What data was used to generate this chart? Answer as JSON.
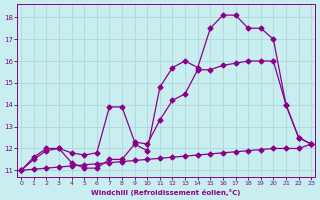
{
  "xlabel": "Windchill (Refroidissement éolien,°C)",
  "bg_color": "#c8eef0",
  "grid_color": "#aad4d8",
  "line_color": "#8b008b",
  "xlim": [
    -0.3,
    23.3
  ],
  "ylim": [
    10.7,
    18.6
  ],
  "xticks": [
    0,
    1,
    2,
    3,
    4,
    5,
    6,
    7,
    8,
    9,
    10,
    11,
    12,
    13,
    14,
    15,
    16,
    17,
    18,
    19,
    20,
    21,
    22,
    23
  ],
  "yticks": [
    11,
    12,
    13,
    14,
    15,
    16,
    17,
    18
  ],
  "line1_x": [
    0,
    1,
    2,
    3,
    4,
    5,
    6,
    7,
    8,
    9,
    10,
    11,
    12,
    13,
    14,
    15,
    16,
    17,
    18,
    19,
    20,
    21,
    22,
    23
  ],
  "line1_y": [
    11.0,
    11.6,
    12.0,
    12.0,
    11.35,
    11.1,
    11.1,
    11.5,
    11.5,
    12.2,
    11.9,
    14.8,
    15.7,
    16.0,
    15.7,
    17.5,
    18.1,
    18.1,
    17.5,
    17.5,
    17.0,
    14.0,
    12.5,
    12.2
  ],
  "line2_x": [
    0,
    1,
    2,
    3,
    4,
    5,
    6,
    7,
    8,
    9,
    10,
    11,
    12,
    13,
    14,
    15,
    16,
    17,
    18,
    19,
    20,
    21,
    22,
    23
  ],
  "line2_y": [
    11.0,
    11.5,
    11.9,
    12.0,
    11.8,
    11.7,
    11.8,
    13.9,
    13.9,
    12.3,
    12.2,
    13.3,
    14.2,
    14.5,
    15.6,
    15.6,
    15.8,
    15.9,
    16.0,
    16.0,
    16.0,
    14.0,
    12.5,
    12.2
  ],
  "line3_x": [
    0,
    1,
    2,
    3,
    4,
    5,
    6,
    7,
    8,
    9,
    10,
    11,
    12,
    13,
    14,
    15,
    16,
    17,
    18,
    19,
    20,
    21,
    22,
    23
  ],
  "line3_y": [
    11.0,
    11.05,
    11.1,
    11.15,
    11.2,
    11.25,
    11.3,
    11.35,
    11.4,
    11.45,
    11.5,
    11.55,
    11.6,
    11.65,
    11.7,
    11.75,
    11.8,
    11.85,
    11.9,
    11.95,
    12.0,
    12.0,
    12.0,
    12.2
  ]
}
